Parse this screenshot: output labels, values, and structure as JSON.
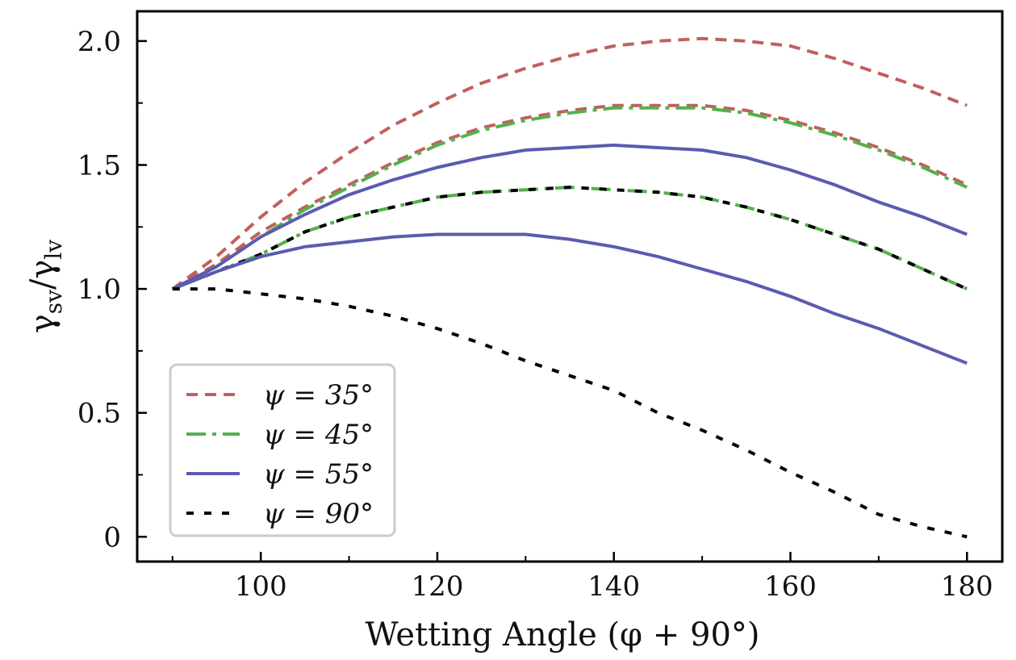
{
  "chart_data": {
    "type": "line",
    "xlabel": "Wetting Angle (φ + 90°)",
    "ylabel": {
      "numerator": "γ",
      "numerator_sub": "sv",
      "slash": "/",
      "denominator": "γ",
      "denominator_sub": "lv"
    },
    "xlim": [
      86,
      184
    ],
    "ylim": [
      -0.1,
      2.12
    ],
    "xticks": [
      100,
      120,
      140,
      160,
      180
    ],
    "xtick_labels": [
      "100",
      "120",
      "140",
      "160",
      "180"
    ],
    "yticks": [
      0,
      0.5,
      1.0,
      1.5,
      2.0
    ],
    "ytick_labels": [
      "0",
      "0.5",
      "1.0",
      "1.5",
      "2.0"
    ],
    "grid": false,
    "legend_position": "lower-left",
    "legend": [
      {
        "label": "ψ = 35°",
        "color": "#c0605e",
        "dash": "dash"
      },
      {
        "label": "ψ = 45°",
        "color": "#55b04d",
        "dash": "dashdot"
      },
      {
        "label": "ψ = 55°",
        "color": "#5b5bb0",
        "dash": "solid"
      },
      {
        "label": "ψ = 90°",
        "color": "#000000",
        "dash": "dot"
      }
    ],
    "series": [
      {
        "group": "ψ = 35°",
        "color": "#c0605e",
        "dash": "dash",
        "width": 4,
        "x": [
          90,
          95,
          100,
          105,
          110,
          115,
          120,
          125,
          130,
          135,
          140,
          145,
          150,
          155,
          160,
          165,
          170,
          175,
          180
        ],
        "y": [
          1.0,
          1.13,
          1.29,
          1.43,
          1.55,
          1.66,
          1.75,
          1.83,
          1.89,
          1.94,
          1.98,
          2.0,
          2.01,
          2.0,
          1.98,
          1.93,
          1.87,
          1.81,
          1.74
        ]
      },
      {
        "group": "ψ = 35°",
        "color": "#c0605e",
        "dash": "dash",
        "width": 4,
        "x": [
          90,
          95,
          100,
          105,
          110,
          115,
          120,
          125,
          130,
          135,
          140,
          145,
          150,
          155,
          160,
          165,
          170,
          175,
          180
        ],
        "y": [
          1.0,
          1.1,
          1.23,
          1.33,
          1.42,
          1.51,
          1.59,
          1.65,
          1.69,
          1.72,
          1.74,
          1.74,
          1.74,
          1.72,
          1.68,
          1.63,
          1.57,
          1.5,
          1.42
        ]
      },
      {
        "group": "ψ = 45°",
        "color": "#55b04d",
        "dash": "dashdot",
        "width": 4,
        "x": [
          90,
          95,
          100,
          105,
          110,
          115,
          120,
          125,
          130,
          135,
          140,
          145,
          150,
          155,
          160,
          165,
          170,
          175,
          180
        ],
        "y": [
          1.0,
          1.09,
          1.21,
          1.32,
          1.41,
          1.5,
          1.58,
          1.64,
          1.68,
          1.71,
          1.73,
          1.73,
          1.73,
          1.71,
          1.67,
          1.62,
          1.56,
          1.49,
          1.41
        ]
      },
      {
        "group": "ψ = 45°",
        "color": "#55b04d",
        "dash": "dashdot",
        "width": 4,
        "x": [
          90,
          95,
          100,
          105,
          110,
          115,
          120,
          125,
          130,
          135,
          140,
          145,
          150,
          155,
          160,
          165,
          170,
          175,
          180
        ],
        "y": [
          1.0,
          1.07,
          1.14,
          1.23,
          1.29,
          1.33,
          1.37,
          1.39,
          1.4,
          1.41,
          1.4,
          1.39,
          1.37,
          1.33,
          1.28,
          1.22,
          1.16,
          1.08,
          1.0
        ]
      },
      {
        "group": "ψ = 90°",
        "color": "#000000",
        "dash": "dot",
        "width": 4,
        "x": [
          90,
          95,
          100,
          105,
          110,
          115,
          120,
          125,
          130,
          135,
          140,
          145,
          150,
          155,
          160,
          165,
          170,
          175,
          180
        ],
        "y": [
          1.0,
          1.07,
          1.14,
          1.23,
          1.29,
          1.33,
          1.37,
          1.39,
          1.4,
          1.41,
          1.4,
          1.39,
          1.37,
          1.33,
          1.28,
          1.22,
          1.16,
          1.08,
          1.0
        ]
      },
      {
        "group": "ψ = 55°",
        "color": "#5b5bb0",
        "dash": "solid",
        "width": 4,
        "x": [
          90,
          95,
          100,
          105,
          110,
          115,
          120,
          125,
          130,
          135,
          140,
          145,
          150,
          155,
          160,
          165,
          170,
          175,
          180
        ],
        "y": [
          1.0,
          1.09,
          1.21,
          1.3,
          1.38,
          1.44,
          1.49,
          1.53,
          1.56,
          1.57,
          1.58,
          1.57,
          1.56,
          1.53,
          1.48,
          1.42,
          1.35,
          1.29,
          1.22
        ]
      },
      {
        "group": "ψ = 55°",
        "color": "#5b5bb0",
        "dash": "solid",
        "width": 4,
        "x": [
          90,
          95,
          100,
          105,
          110,
          115,
          120,
          125,
          130,
          135,
          140,
          145,
          150,
          155,
          160,
          165,
          170,
          175,
          180
        ],
        "y": [
          1.0,
          1.07,
          1.13,
          1.17,
          1.19,
          1.21,
          1.22,
          1.22,
          1.22,
          1.2,
          1.17,
          1.13,
          1.08,
          1.03,
          0.97,
          0.9,
          0.84,
          0.77,
          0.7
        ]
      },
      {
        "group": "ψ = 90°",
        "color": "#000000",
        "dash": "dot",
        "width": 4,
        "x": [
          90,
          95,
          100,
          105,
          110,
          115,
          120,
          125,
          130,
          135,
          140,
          145,
          150,
          155,
          160,
          165,
          170,
          175,
          180
        ],
        "y": [
          1.0,
          1.0,
          0.98,
          0.96,
          0.93,
          0.89,
          0.84,
          0.78,
          0.71,
          0.65,
          0.59,
          0.5,
          0.43,
          0.35,
          0.26,
          0.18,
          0.09,
          0.04,
          0.0
        ]
      }
    ]
  }
}
